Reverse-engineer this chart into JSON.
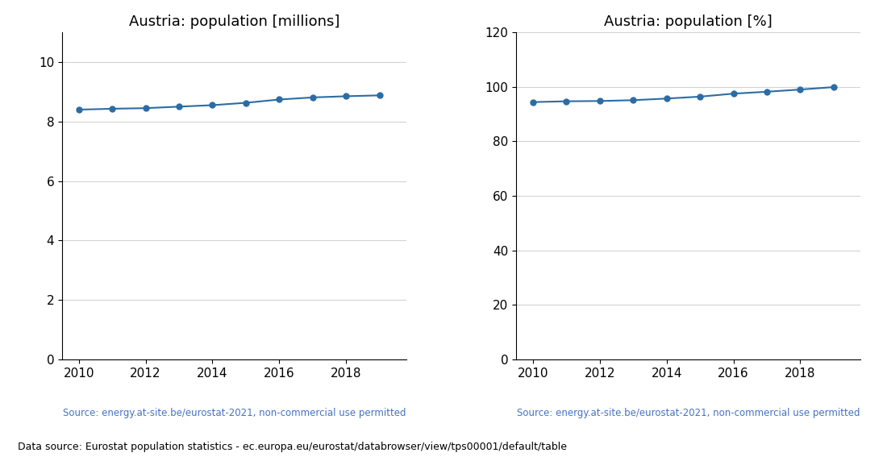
{
  "years": [
    2010,
    2011,
    2012,
    2013,
    2014,
    2015,
    2016,
    2017,
    2018,
    2019
  ],
  "population_millions": [
    8.4,
    8.43,
    8.45,
    8.5,
    8.55,
    8.63,
    8.74,
    8.81,
    8.85,
    8.88
  ],
  "population_percent": [
    94.4,
    94.7,
    94.8,
    95.1,
    95.7,
    96.4,
    97.5,
    98.2,
    99.0,
    99.9
  ],
  "title_millions": "Austria: population [millions]",
  "title_percent": "Austria: population [%]",
  "source_text": "Source: energy.at-site.be/eurostat-2021, non-commercial use permitted",
  "bottom_text": "Data source: Eurostat population statistics - ec.europa.eu/eurostat/databrowser/view/tps00001/default/table",
  "line_color": "#2c6ca4",
  "source_color": "#4472c4",
  "ylim_millions": [
    0,
    11
  ],
  "ylim_percent": [
    0,
    120
  ],
  "yticks_millions": [
    0,
    2,
    4,
    6,
    8,
    10
  ],
  "yticks_percent": [
    0,
    20,
    40,
    60,
    80,
    100,
    120
  ]
}
